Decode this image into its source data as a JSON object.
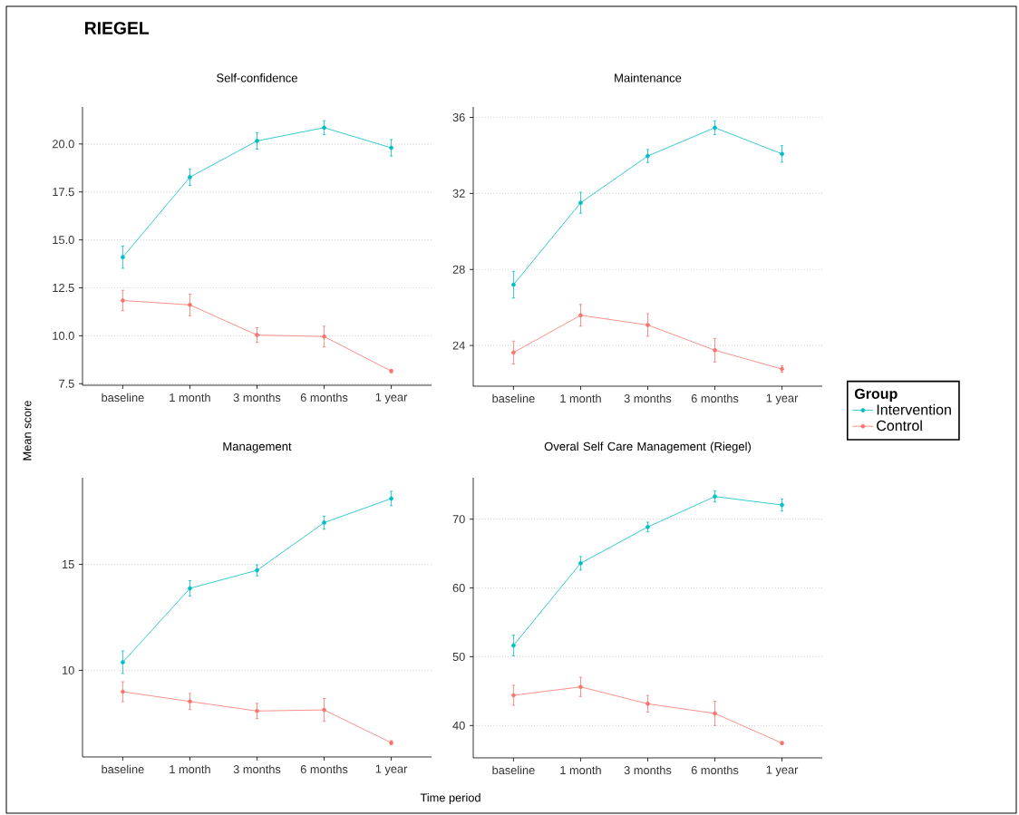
{
  "chart_data": [
    {
      "type": "line",
      "title": "Self-confidence",
      "annotations": [
        "RIEGEL",
        "Mean score",
        "Time period"
      ],
      "categories": [
        "baseline",
        "1 month",
        "3 months",
        "6 months",
        "1 year"
      ],
      "ylim": [
        7.42,
        21.93
      ],
      "yticks": [
        7.5,
        {
          "value": 10,
          "label": "10.0"
        },
        12.5,
        {
          "value": 15,
          "label": "15.0"
        },
        17.5,
        {
          "value": 20,
          "label": "20.0"
        }
      ],
      "grid": "y",
      "marker": "circle",
      "line_style": "solid",
      "series": [
        {
          "color": "#00bfc4",
          "values": [
            14.1,
            18.27,
            20.16,
            20.85,
            19.8
          ],
          "errors": [
            0.58,
            0.43,
            0.43,
            0.36,
            0.43
          ]
        },
        {
          "color": "#f8766d",
          "values": [
            11.84,
            11.61,
            10.04,
            9.96,
            8.16
          ],
          "errors": [
            0.53,
            0.56,
            0.38,
            0.54,
            0.08
          ]
        }
      ]
    },
    {
      "type": "line",
      "title": "Maintenance",
      "legend": "right",
      "legend_title": "Group",
      "categories": [
        "baseline",
        "1 month",
        "3 months",
        "6 months",
        "1 year"
      ],
      "ylim": [
        21.86,
        36.55
      ],
      "yticks": [
        24,
        28,
        32,
        36
      ],
      "grid": "y",
      "marker": "circle",
      "line_style": "solid",
      "series": [
        {
          "name": "Intervention",
          "color": "#00bfc4",
          "values": [
            27.2,
            31.51,
            33.97,
            35.46,
            34.08
          ],
          "errors": [
            0.7,
            0.55,
            0.34,
            0.36,
            0.43
          ]
        },
        {
          "name": "Control",
          "color": "#f8766d",
          "values": [
            23.63,
            25.59,
            25.08,
            23.75,
            22.76
          ],
          "errors": [
            0.6,
            0.57,
            0.59,
            0.62,
            0.17
          ]
        }
      ]
    },
    {
      "type": "line",
      "title": "Management",
      "categories": [
        "baseline",
        "1 month",
        "3 months",
        "6 months",
        "1 year"
      ],
      "ylim": [
        5.91,
        19.09
      ],
      "yticks": [
        10,
        15
      ],
      "grid": "y",
      "marker": "circle",
      "line_style": "solid",
      "series": [
        {
          "color": "#00bfc4",
          "values": [
            10.38,
            13.87,
            14.72,
            16.97,
            18.11
          ],
          "errors": [
            0.53,
            0.36,
            0.26,
            0.31,
            0.34
          ]
        },
        {
          "color": "#f8766d",
          "values": [
            8.99,
            8.53,
            8.08,
            8.13,
            6.58
          ],
          "errors": [
            0.47,
            0.38,
            0.36,
            0.54,
            0.1
          ]
        }
      ]
    },
    {
      "type": "line",
      "title": "Overal Self Care Management (Riegel)",
      "categories": [
        "baseline",
        "1 month",
        "3 months",
        "6 months",
        "1 year"
      ],
      "ylim": [
        35.3,
        76.02
      ],
      "yticks": [
        40,
        50,
        60,
        70
      ],
      "grid": "y",
      "marker": "circle",
      "line_style": "solid",
      "series": [
        {
          "color": "#00bfc4",
          "values": [
            51.64,
            63.59,
            68.86,
            73.29,
            72.06
          ],
          "errors": [
            1.5,
            0.99,
            0.7,
            0.79,
            0.88
          ]
        },
        {
          "color": "#f8766d",
          "values": [
            44.39,
            45.62,
            43.16,
            41.76,
            37.45
          ],
          "errors": [
            1.45,
            1.4,
            1.2,
            1.76,
            0.2
          ]
        }
      ]
    }
  ]
}
